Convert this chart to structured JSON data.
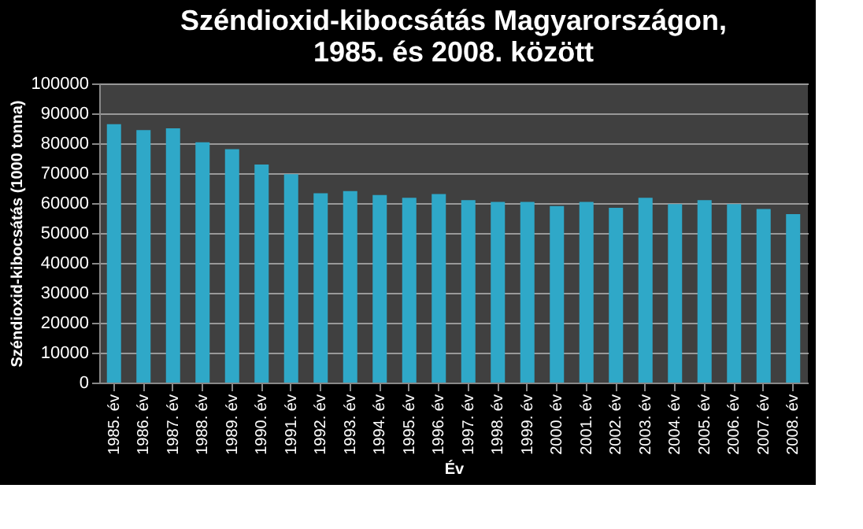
{
  "chart_data": {
    "type": "bar",
    "title": [
      "Széndioxid-kibocsátás Magyarországon,",
      "1985. és 2008. között"
    ],
    "xlabel": "Év",
    "ylabel": "Széndioxid-kibocsátás  (1000 tonna)",
    "categories": [
      "1985. év",
      "1986. év",
      "1987. év",
      "1988. év",
      "1989. év",
      "1990. év",
      "1991. év",
      "1992. év",
      "1993. év",
      "1994. év",
      "1995. év",
      "1996. év",
      "1997. év",
      "1998. év",
      "1999. év",
      "2000. év",
      "2001. év",
      "2002. év",
      "2003. év",
      "2004. év",
      "2005. év",
      "2006. év",
      "2007. év",
      "2008. év"
    ],
    "values": [
      86400,
      84400,
      85000,
      80300,
      78000,
      72900,
      69700,
      63300,
      64000,
      62700,
      61800,
      63000,
      61000,
      60400,
      60400,
      59000,
      60400,
      58400,
      61800,
      59700,
      61000,
      59700,
      58000,
      56300
    ],
    "color": "#2fa8c8",
    "ylim": [
      0,
      100000
    ],
    "yticks": [
      0,
      10000,
      20000,
      30000,
      40000,
      50000,
      60000,
      70000,
      80000,
      90000,
      100000
    ],
    "grid": "y"
  }
}
